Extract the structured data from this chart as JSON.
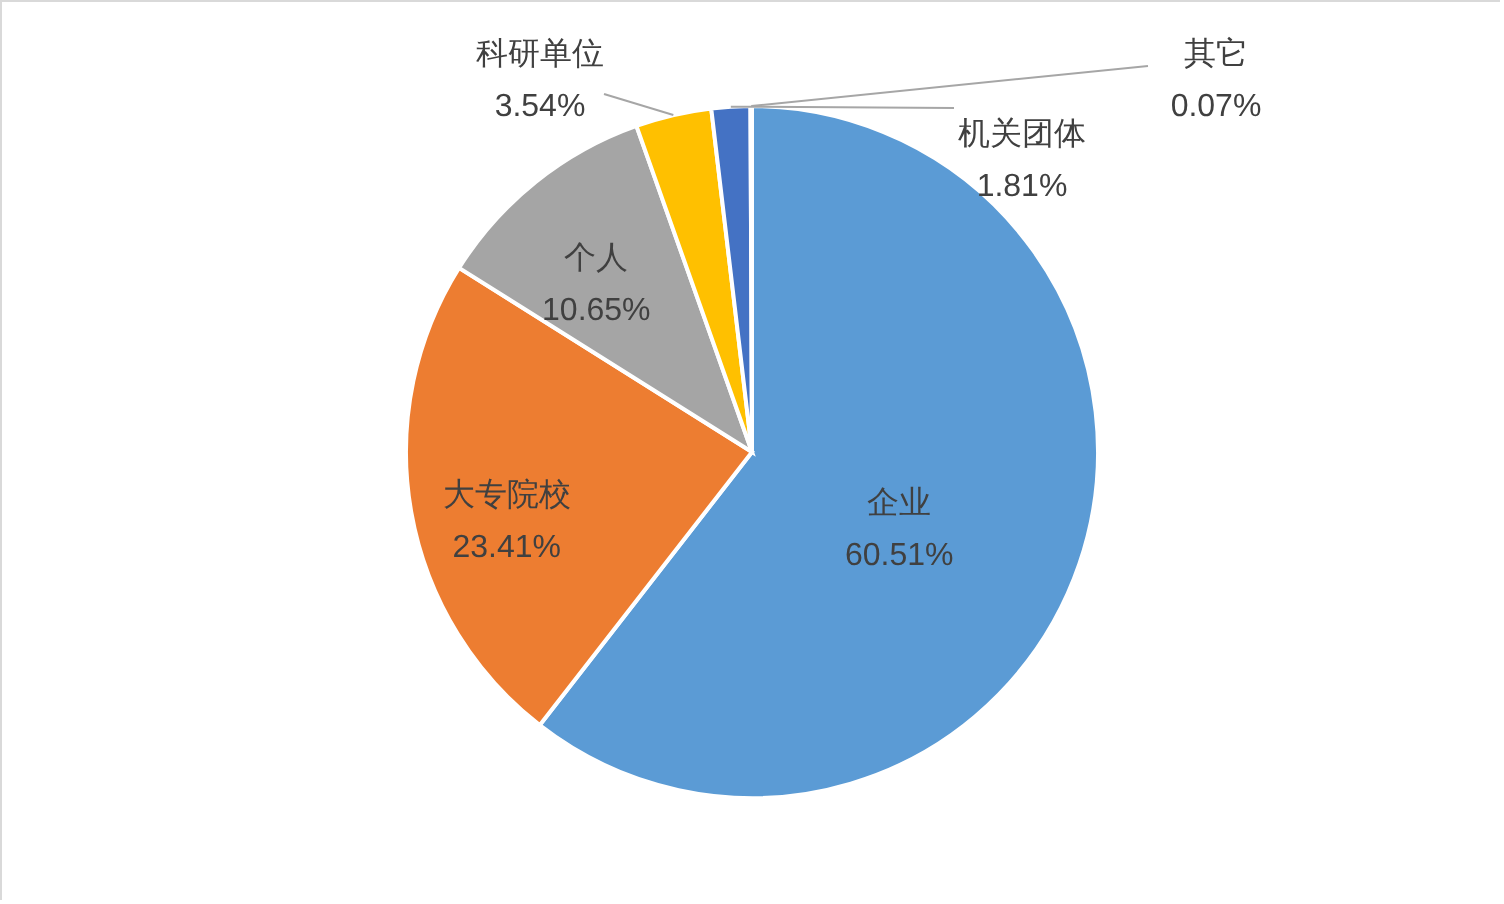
{
  "chart_data": {
    "type": "pie",
    "categories": [
      "企业",
      "大专院校",
      "个人",
      "科研单位",
      "机关团体",
      "其它"
    ],
    "values": [
      60.51,
      23.41,
      10.65,
      3.54,
      1.81,
      0.07
    ],
    "value_labels": [
      "60.51%",
      "23.41%",
      "10.65%",
      "3.54%",
      "1.81%",
      "0.07%"
    ],
    "colors": [
      "#5b9bd5",
      "#ed7d31",
      "#a5a5a5",
      "#ffc000",
      "#4472c4",
      "#70ad47"
    ]
  }
}
